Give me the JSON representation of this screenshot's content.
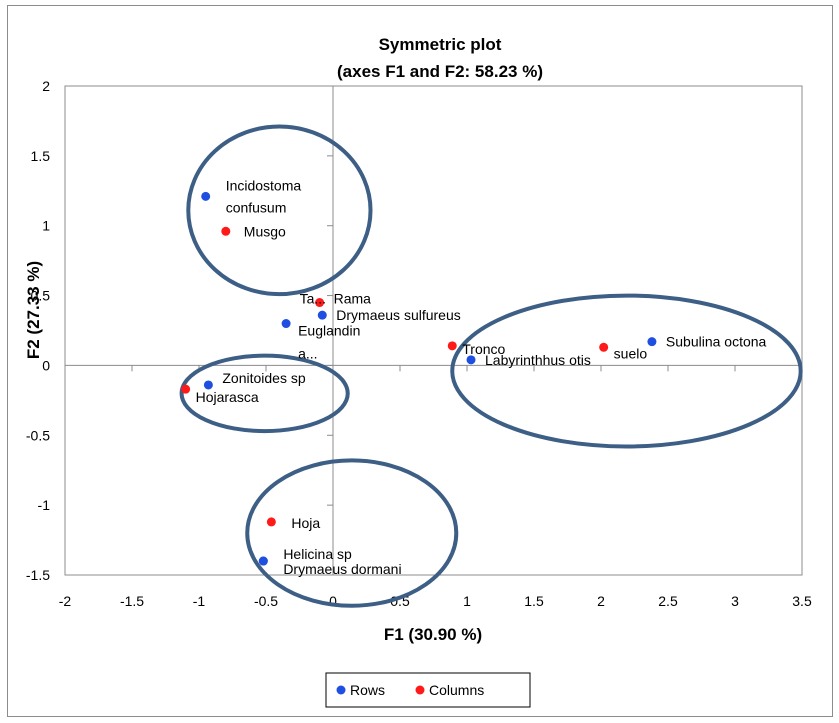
{
  "chart_data": {
    "type": "scatter",
    "title": "Symmetric plot",
    "subtitle": "(axes F1 and F2: 58.23 %)",
    "xlabel": "F1 (30.90 %)",
    "ylabel": "F2 (27.33 %)",
    "xlim": [
      -2,
      3.5
    ],
    "ylim": [
      -1.5,
      2
    ],
    "x_ticks": [
      "-2",
      "-1.5",
      "-1",
      "-0.5",
      "0",
      "0.5",
      "1",
      "1.5",
      "2",
      "2.5",
      "3",
      "3.5"
    ],
    "y_ticks": [
      "-1.5",
      "-1",
      "-0.5",
      "0",
      "0.5",
      "1",
      "1.5",
      "2"
    ],
    "grid": false,
    "legend_position": "bottom",
    "series": [
      {
        "name": "Rows",
        "color": "#1f4fe0",
        "points": [
          {
            "label": "Incidostoma confusum",
            "x": -0.95,
            "y": 1.21
          },
          {
            "label": "Drymaeus sulfureus",
            "x": -0.08,
            "y": 0.36
          },
          {
            "label": "Euglandina",
            "x": -0.35,
            "y": 0.3
          },
          {
            "label": "Subulina octona",
            "x": 2.38,
            "y": 0.17
          },
          {
            "label": "Labyrinthhus otis",
            "x": 1.03,
            "y": 0.04
          },
          {
            "label": "Zonitoides sp",
            "x": -0.93,
            "y": -0.14
          },
          {
            "label": "Helicina sp",
            "x": -0.52,
            "y": -1.4
          },
          {
            "label": "Drymaeus dormani",
            "x": -0.52,
            "y": -1.4
          }
        ]
      },
      {
        "name": "Columns",
        "color": "#ff1a1a",
        "points": [
          {
            "label": "Musgo",
            "x": -0.8,
            "y": 0.96
          },
          {
            "label": "Rama",
            "x": -0.1,
            "y": 0.45
          },
          {
            "label": "Tronco",
            "x": 0.89,
            "y": 0.14
          },
          {
            "label": "suelo",
            "x": 2.02,
            "y": 0.13
          },
          {
            "label": "Hojarasca",
            "x": -1.1,
            "y": -0.17
          },
          {
            "label": "Hoja",
            "x": -0.46,
            "y": -1.12
          }
        ]
      }
    ],
    "annotations": [
      "Ta...",
      "a..."
    ],
    "ellipse_color": "#3d5f86"
  },
  "legend": {
    "rows_label": "Rows",
    "columns_label": "Columns"
  }
}
